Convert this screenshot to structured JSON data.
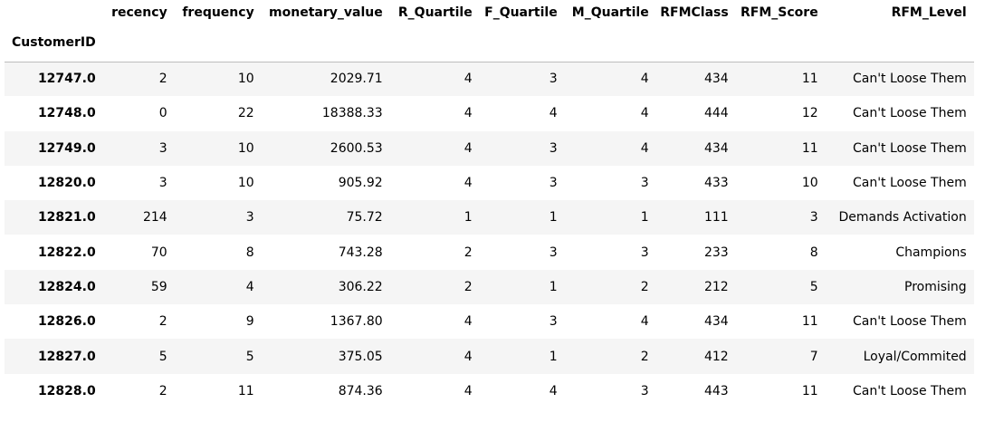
{
  "table": {
    "index_name": "CustomerID",
    "columns": [
      "recency",
      "frequency",
      "monetary_value",
      "R_Quartile",
      "F_Quartile",
      "M_Quartile",
      "RFMClass",
      "RFM_Score",
      "RFM_Level"
    ],
    "rows": [
      {
        "id": "12747.0",
        "cells": [
          "2",
          "10",
          "2029.71",
          "4",
          "3",
          "4",
          "434",
          "11",
          "Can't Loose Them"
        ]
      },
      {
        "id": "12748.0",
        "cells": [
          "0",
          "22",
          "18388.33",
          "4",
          "4",
          "4",
          "444",
          "12",
          "Can't Loose Them"
        ]
      },
      {
        "id": "12749.0",
        "cells": [
          "3",
          "10",
          "2600.53",
          "4",
          "3",
          "4",
          "434",
          "11",
          "Can't Loose Them"
        ]
      },
      {
        "id": "12820.0",
        "cells": [
          "3",
          "10",
          "905.92",
          "4",
          "3",
          "3",
          "433",
          "10",
          "Can't Loose Them"
        ]
      },
      {
        "id": "12821.0",
        "cells": [
          "214",
          "3",
          "75.72",
          "1",
          "1",
          "1",
          "111",
          "3",
          "Demands Activation"
        ]
      },
      {
        "id": "12822.0",
        "cells": [
          "70",
          "8",
          "743.28",
          "2",
          "3",
          "3",
          "233",
          "8",
          "Champions"
        ]
      },
      {
        "id": "12824.0",
        "cells": [
          "59",
          "4",
          "306.22",
          "2",
          "1",
          "2",
          "212",
          "5",
          "Promising"
        ]
      },
      {
        "id": "12826.0",
        "cells": [
          "2",
          "9",
          "1367.80",
          "4",
          "3",
          "4",
          "434",
          "11",
          "Can't Loose Them"
        ]
      },
      {
        "id": "12827.0",
        "cells": [
          "5",
          "5",
          "375.05",
          "4",
          "1",
          "2",
          "412",
          "7",
          "Loyal/Commited"
        ]
      },
      {
        "id": "12828.0",
        "cells": [
          "2",
          "11",
          "874.36",
          "4",
          "4",
          "3",
          "443",
          "11",
          "Can't Loose Them"
        ]
      }
    ]
  }
}
